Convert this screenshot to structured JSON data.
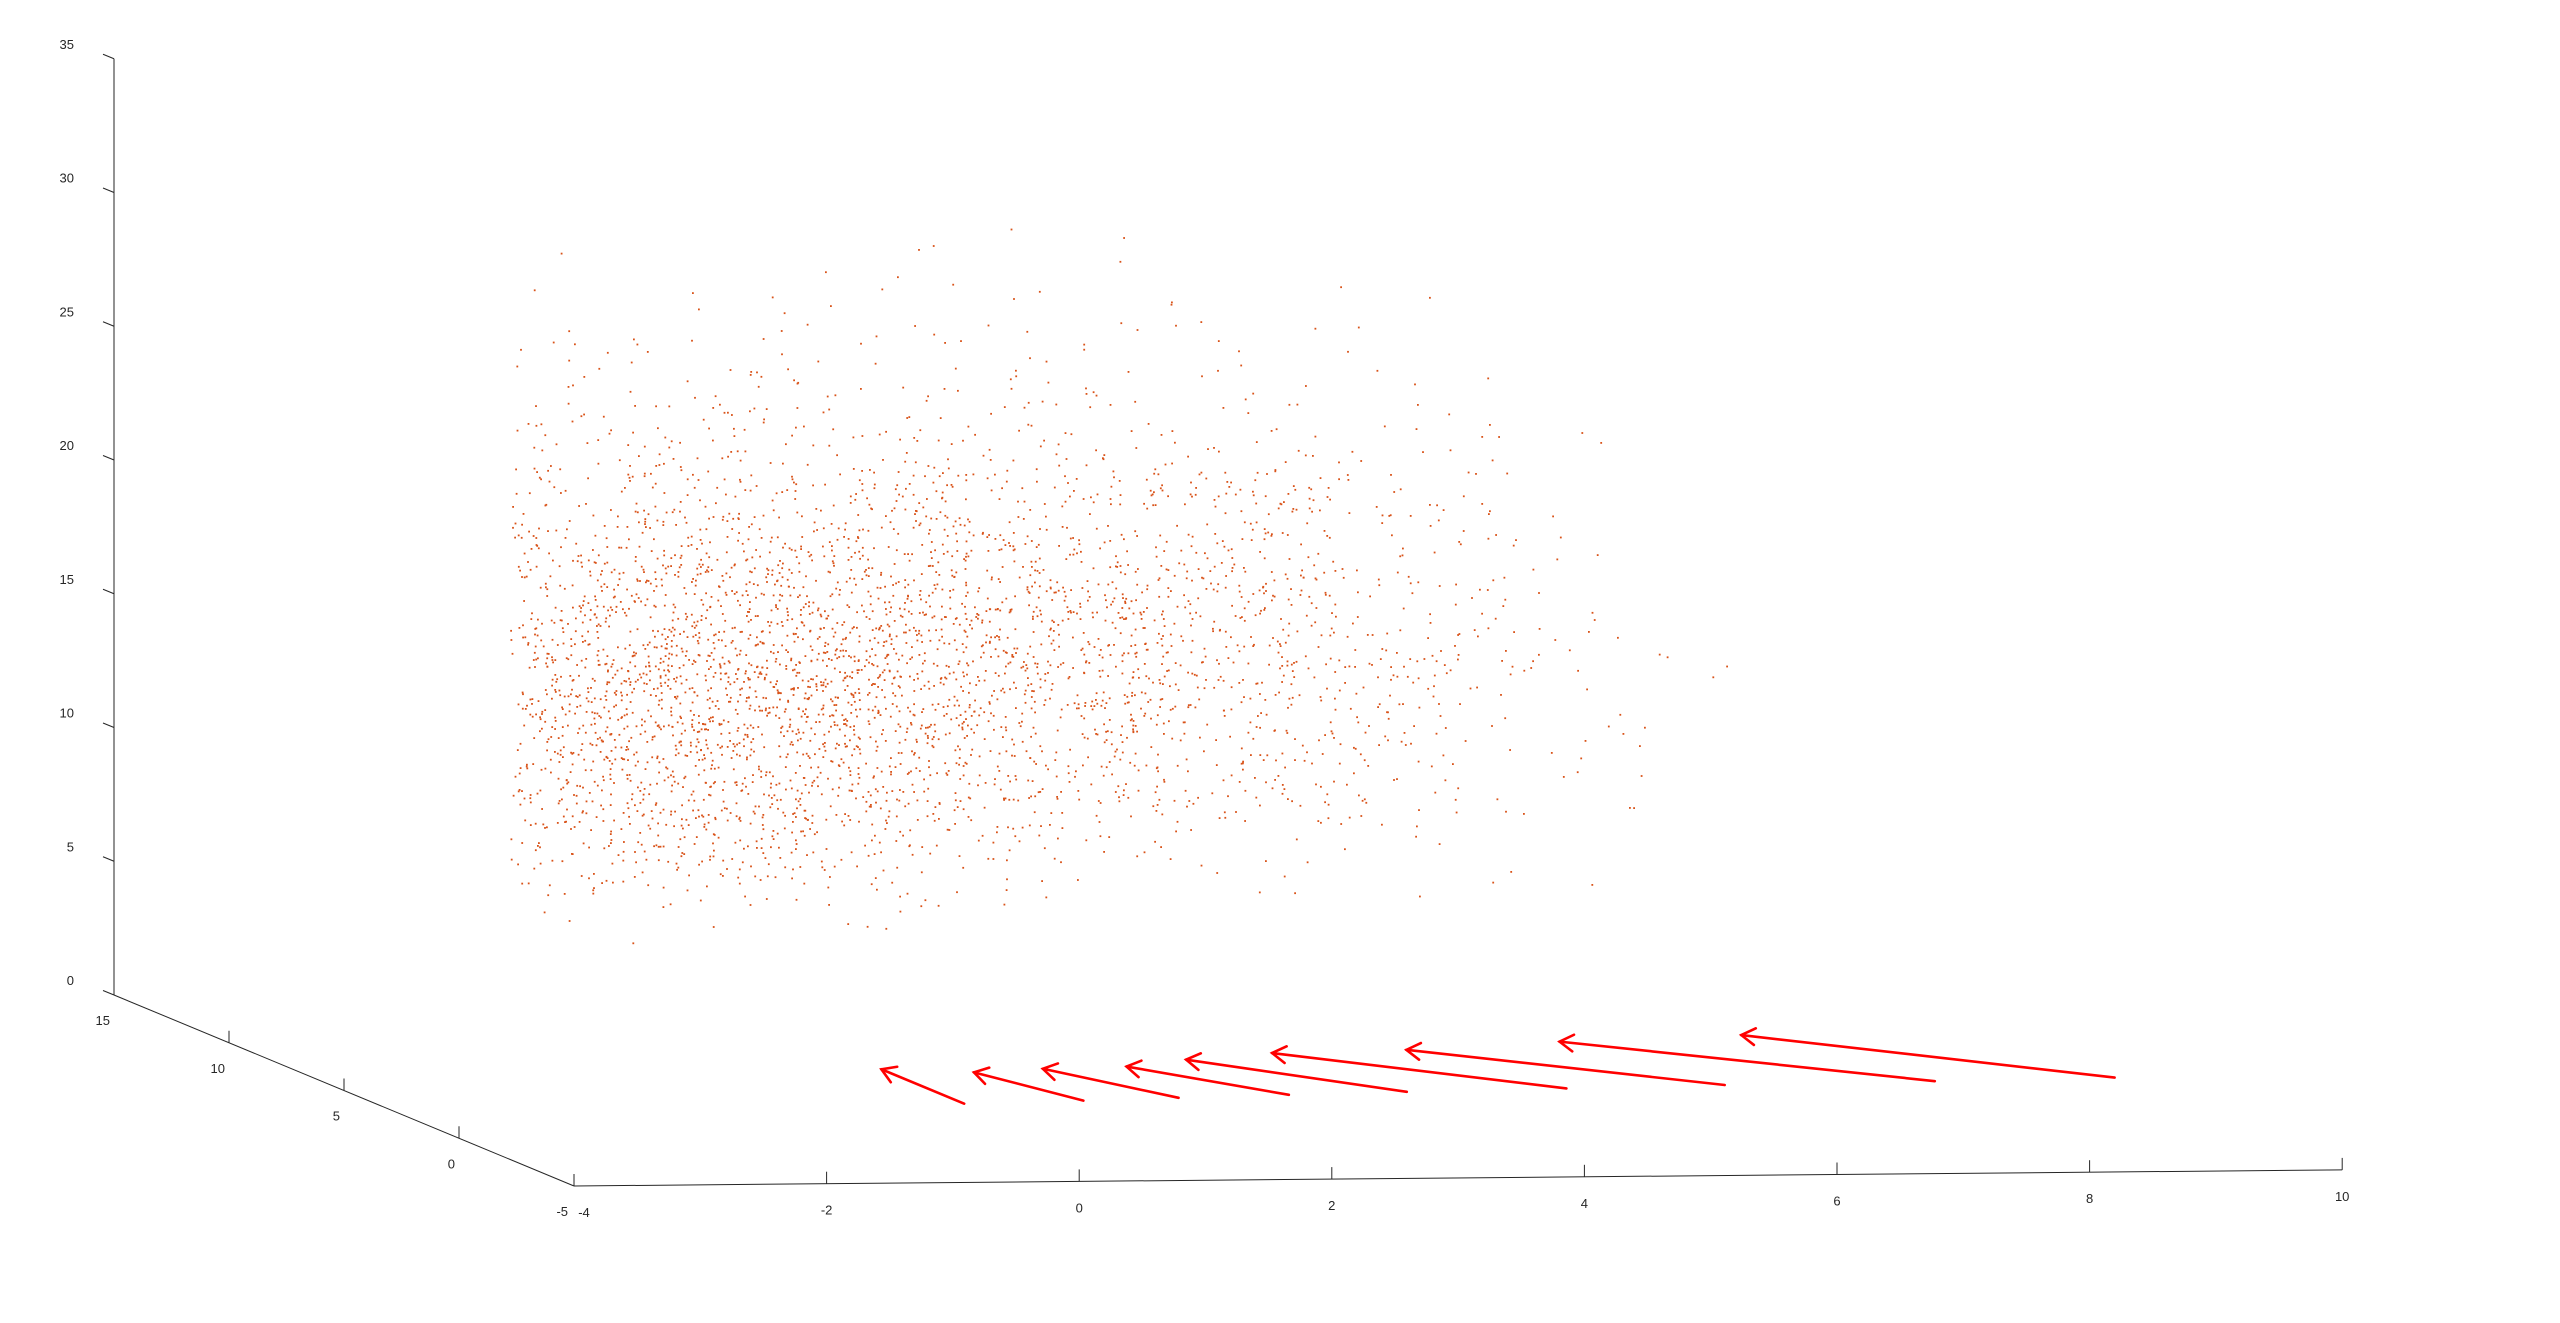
{
  "chart_data": {
    "type": "scatter",
    "projection": "3d",
    "title": "",
    "xlabel": "",
    "ylabel": "",
    "zlabel": "",
    "grid": false,
    "colors": {
      "points": "#d95319",
      "cameras": "#ff0000",
      "axes": "#262626"
    },
    "axes": {
      "x": {
        "range": [
          -4,
          10
        ],
        "ticks": [
          -4,
          -2,
          0,
          2,
          4,
          6,
          8,
          10
        ],
        "tick_labels": [
          "-4",
          "-2",
          "0",
          "2",
          "4",
          "6",
          "8",
          "10"
        ]
      },
      "y": {
        "range": [
          -5,
          15
        ],
        "ticks": [
          -5,
          0,
          5,
          10,
          15
        ],
        "tick_labels": [
          "-5",
          "0",
          "5",
          "10",
          "15"
        ]
      },
      "z": {
        "range": [
          0,
          35
        ],
        "ticks": [
          0,
          5,
          10,
          15,
          20,
          25,
          30,
          35
        ],
        "tick_labels": [
          "0",
          "5",
          "10",
          "15",
          "20",
          "25",
          "30",
          "35"
        ]
      }
    },
    "series": [
      {
        "kind": "point-cloud",
        "approx_point_count": 4500,
        "clusters": [
          {
            "center_xy": [
              -1.0,
              7.5
            ],
            "spread_xy": [
              1.2,
              2.2
            ],
            "weight": 0.22
          },
          {
            "center_xy": [
              -0.3,
              10.0
            ],
            "spread_xy": [
              1.4,
              3.0
            ],
            "weight": 0.2
          },
          {
            "center_xy": [
              0.8,
              12.0
            ],
            "spread_xy": [
              1.3,
              3.2
            ],
            "weight": 0.16
          },
          {
            "center_xy": [
              2.0,
              12.5
            ],
            "spread_xy": [
              1.6,
              3.5
            ],
            "weight": 0.16
          },
          {
            "center_xy": [
              3.6,
              13.5
            ],
            "spread_xy": [
              1.5,
              3.0
            ],
            "weight": 0.14
          },
          {
            "center_xy": [
              5.0,
              16.0
            ],
            "spread_xy": [
              1.3,
              2.5
            ],
            "weight": 0.12
          }
        ]
      },
      {
        "kind": "camera-arrows",
        "cameras": [
          {
            "base": [
              0.0,
              0.0
            ],
            "tip": [
              0.0,
              3.6
            ]
          },
          {
            "base": [
              0.98,
              0.2
            ],
            "tip": [
              0.66,
              3.2
            ]
          },
          {
            "base": [
              1.77,
              0.4
            ],
            "tip": [
              1.26,
              3.5
            ]
          },
          {
            "base": [
              2.68,
              0.6
            ],
            "tip": [
              1.95,
              3.65
            ]
          },
          {
            "base": [
              3.65,
              0.8
            ],
            "tip": [
              2.54,
              4.3
            ]
          },
          {
            "base": [
              4.95,
              1.0
            ],
            "tip": [
              3.33,
              4.9
            ]
          },
          {
            "base": [
              6.24,
              1.2
            ],
            "tip": [
              4.43,
              5.1
            ]
          },
          {
            "base": [
              7.94,
              1.4
            ],
            "tip": [
              5.77,
              5.8
            ]
          },
          {
            "base": [
              9.4,
              1.6
            ],
            "tip": [
              7.3,
              6.3
            ]
          }
        ]
      }
    ]
  }
}
